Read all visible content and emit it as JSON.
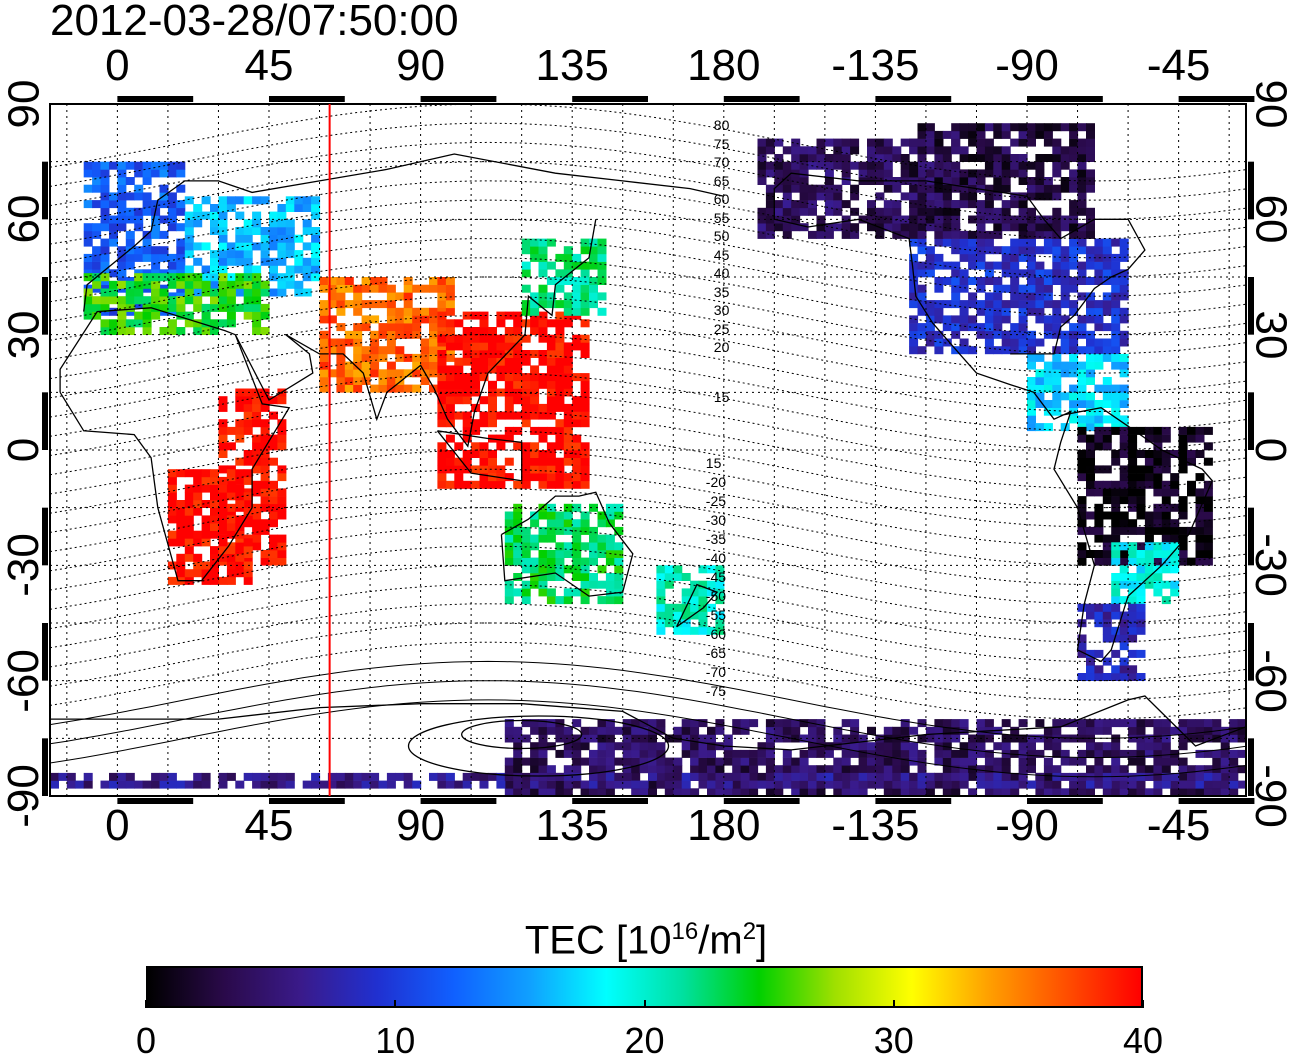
{
  "timestamp": "2012-03-28/07:50:00",
  "map": {
    "projection": "equirectangular",
    "central_longitude": 157.5,
    "lon_range_display": [
      -20,
      335
    ],
    "lat_range": [
      -90,
      90
    ],
    "x_tick_labels": [
      "0",
      "45",
      "90",
      "135",
      "180",
      "-135",
      "-90",
      "-45"
    ],
    "x_tick_lons": [
      0,
      45,
      90,
      135,
      180,
      225,
      270,
      315
    ],
    "y_tick_labels": [
      "90",
      "60",
      "30",
      "0",
      "-30",
      "-60",
      "-90"
    ],
    "y_tick_lats": [
      90,
      60,
      30,
      0,
      -30,
      -60,
      -90
    ],
    "grid": "dotted 15-degree",
    "marker_line_longitude": 63,
    "marker_line_color": "#ff0000",
    "magnetic_latitude_labels_north": [
      "80",
      "75",
      "70",
      "65",
      "60",
      "55",
      "50",
      "45",
      "40",
      "35",
      "30",
      "25",
      "20",
      "15"
    ],
    "magnetic_latitude_labels_south": [
      "15",
      "20",
      "25",
      "30",
      "35",
      "40",
      "45",
      "50",
      "55",
      "60",
      "65",
      "70",
      "75"
    ]
  },
  "colorbar": {
    "title_prefix": "TEC  [10",
    "title_sup1": "16",
    "title_mid": "/m",
    "title_sup2": "2",
    "title_suffix": "]",
    "min": 0,
    "max": 40,
    "tick_labels": [
      "0",
      "10",
      "20",
      "30",
      "40"
    ],
    "colormap": [
      "#000000",
      "#2a0a4a",
      "#3a1a8a",
      "#2030d0",
      "#1060ff",
      "#10a0ff",
      "#00ffff",
      "#00e0a0",
      "#00d000",
      "#a0e000",
      "#ffff00",
      "#ffa000",
      "#ff5000",
      "#ff0000"
    ]
  },
  "tec_regions": [
    {
      "lon_range": [
        -10,
        20
      ],
      "lat_range": [
        35,
        75
      ],
      "tec": 12
    },
    {
      "lon_range": [
        20,
        60
      ],
      "lat_range": [
        40,
        65
      ],
      "tec": 16
    },
    {
      "lon_range": [
        -10,
        45
      ],
      "lat_range": [
        30,
        45
      ],
      "tec": 25
    },
    {
      "lon_range": [
        30,
        50
      ],
      "lat_range": [
        -30,
        15
      ],
      "tec": 40
    },
    {
      "lon_range": [
        15,
        40
      ],
      "lat_range": [
        -35,
        -5
      ],
      "tec": 40
    },
    {
      "lon_range": [
        60,
        100
      ],
      "lat_range": [
        15,
        45
      ],
      "tec": 36
    },
    {
      "lon_range": [
        95,
        140
      ],
      "lat_range": [
        -10,
        35
      ],
      "tec": 40
    },
    {
      "lon_range": [
        115,
        150
      ],
      "lat_range": [
        -40,
        -15
      ],
      "tec": 23
    },
    {
      "lon_range": [
        160,
        178
      ],
      "lat_range": [
        -48,
        -30
      ],
      "tec": 20
    },
    {
      "lon_range": [
        120,
        145
      ],
      "lat_range": [
        35,
        55
      ],
      "tec": 22
    },
    {
      "lon_range": [
        190,
        250
      ],
      "lat_range": [
        55,
        80
      ],
      "tec": 4
    },
    {
      "lon_range": [
        235,
        300
      ],
      "lat_range": [
        25,
        55
      ],
      "tec": 9
    },
    {
      "lon_range": [
        235,
        290
      ],
      "lat_range": [
        55,
        85
      ],
      "tec": 3
    },
    {
      "lon_range": [
        270,
        300
      ],
      "lat_range": [
        5,
        25
      ],
      "tec": 17
    },
    {
      "lon_range": [
        285,
        325
      ],
      "lat_range": [
        -30,
        5
      ],
      "tec": 1
    },
    {
      "lon_range": [
        295,
        315
      ],
      "lat_range": [
        -40,
        -25
      ],
      "tec": 19
    },
    {
      "lon_range": [
        285,
        305
      ],
      "lat_range": [
        -60,
        -40
      ],
      "tec": 8
    },
    {
      "lon_range": [
        115,
        335
      ],
      "lat_range": [
        -90,
        -70
      ],
      "tec": 4
    },
    {
      "lon_range": [
        -20,
        335
      ],
      "lat_range": [
        -88,
        -84
      ],
      "tec": 6
    }
  ]
}
